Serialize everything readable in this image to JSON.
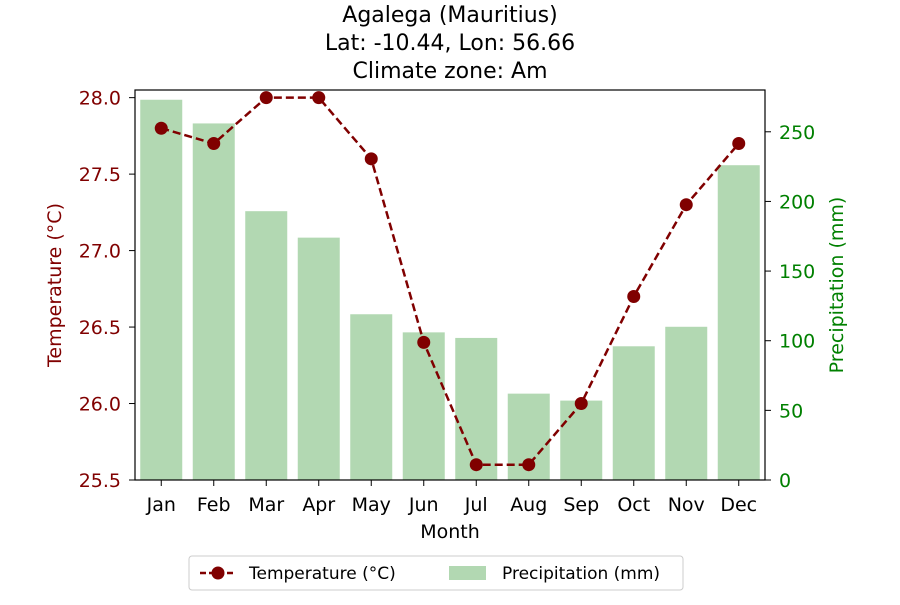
{
  "chart_data": {
    "type": "bar+line",
    "title_lines": [
      "Agalega (Mauritius)",
      "Lat: -10.44, Lon: 56.66",
      "Climate zone: Am"
    ],
    "xlabel": "Month",
    "ylabel_left": "Temperature (°C)",
    "ylabel_right": "Precipitation (mm)",
    "categories": [
      "Jan",
      "Feb",
      "Mar",
      "Apr",
      "May",
      "Jun",
      "Jul",
      "Aug",
      "Sep",
      "Oct",
      "Nov",
      "Dec"
    ],
    "temperature": {
      "name": "Temperature (°C)",
      "color": "#800000",
      "values": [
        27.8,
        27.7,
        28.0,
        28.0,
        27.6,
        26.4,
        25.6,
        25.6,
        26.0,
        26.7,
        27.3,
        27.7
      ]
    },
    "precipitation": {
      "name": "Precipitation (mm)",
      "color": "#b2d8b2",
      "values": [
        273,
        256,
        193,
        174,
        119,
        106,
        102,
        62,
        57,
        96,
        110,
        226
      ]
    },
    "ylim_left": [
      25.5,
      28.05
    ],
    "ylim_right": [
      0,
      280
    ],
    "yticks_left": [
      "28.0",
      "27.5",
      "27.0",
      "26.5",
      "26.0",
      "25.5"
    ],
    "yticks_right": [
      "250",
      "200",
      "150",
      "100",
      "50",
      "0"
    ],
    "left_axis_color": "#800000",
    "right_axis_color": "#008000",
    "legend_position": "bottom-center"
  }
}
